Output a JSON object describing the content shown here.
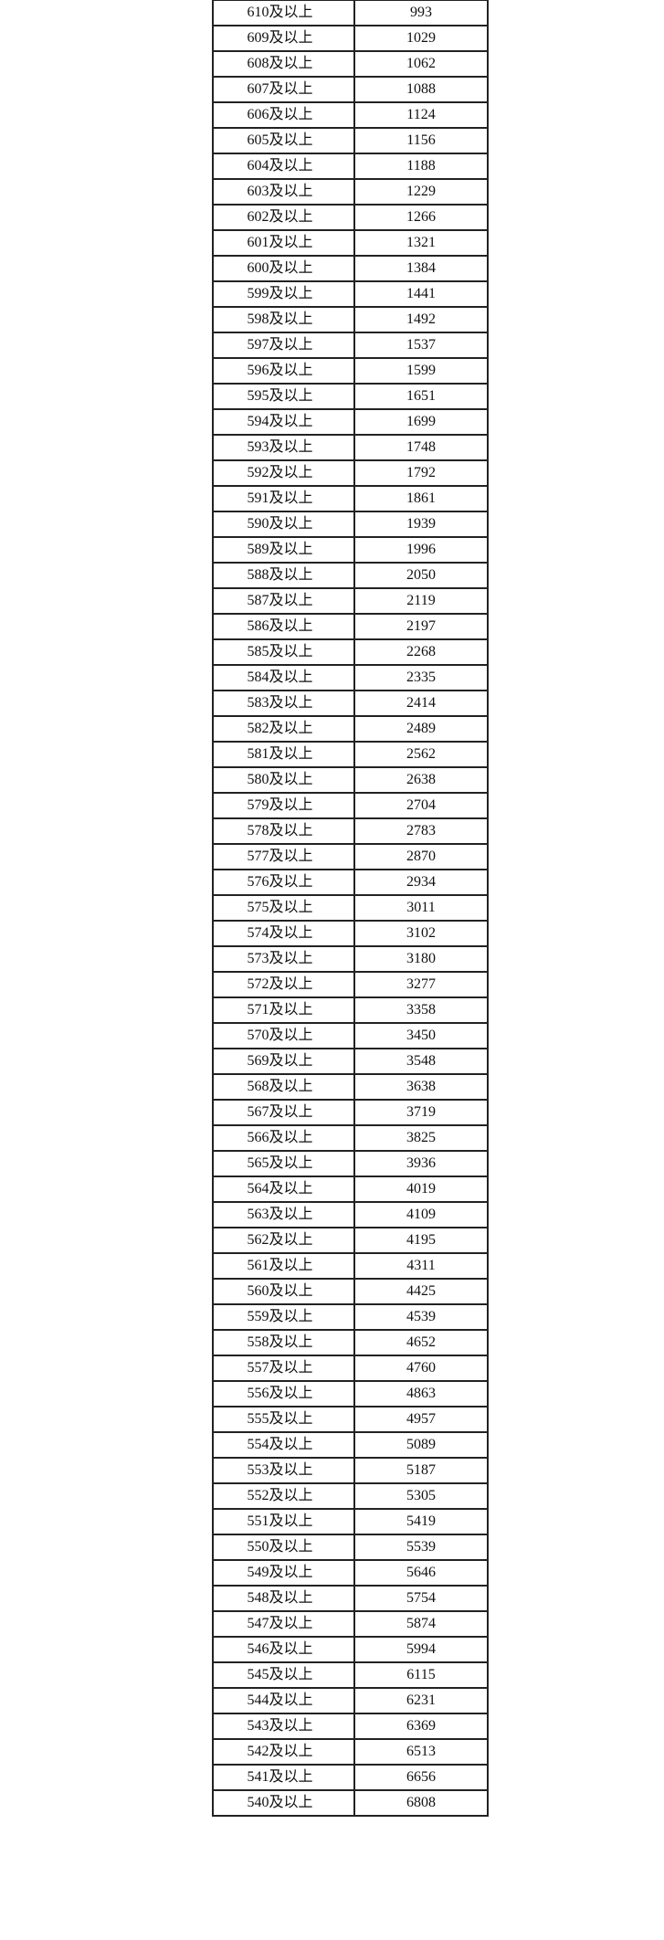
{
  "table": {
    "rows": [
      [
        "610及以上",
        "993"
      ],
      [
        "609及以上",
        "1029"
      ],
      [
        "608及以上",
        "1062"
      ],
      [
        "607及以上",
        "1088"
      ],
      [
        "606及以上",
        "1124"
      ],
      [
        "605及以上",
        "1156"
      ],
      [
        "604及以上",
        "1188"
      ],
      [
        "603及以上",
        "1229"
      ],
      [
        "602及以上",
        "1266"
      ],
      [
        "601及以上",
        "1321"
      ],
      [
        "600及以上",
        "1384"
      ],
      [
        "599及以上",
        "1441"
      ],
      [
        "598及以上",
        "1492"
      ],
      [
        "597及以上",
        "1537"
      ],
      [
        "596及以上",
        "1599"
      ],
      [
        "595及以上",
        "1651"
      ],
      [
        "594及以上",
        "1699"
      ],
      [
        "593及以上",
        "1748"
      ],
      [
        "592及以上",
        "1792"
      ],
      [
        "591及以上",
        "1861"
      ],
      [
        "590及以上",
        "1939"
      ],
      [
        "589及以上",
        "1996"
      ],
      [
        "588及以上",
        "2050"
      ],
      [
        "587及以上",
        "2119"
      ],
      [
        "586及以上",
        "2197"
      ],
      [
        "585及以上",
        "2268"
      ],
      [
        "584及以上",
        "2335"
      ],
      [
        "583及以上",
        "2414"
      ],
      [
        "582及以上",
        "2489"
      ],
      [
        "581及以上",
        "2562"
      ],
      [
        "580及以上",
        "2638"
      ],
      [
        "579及以上",
        "2704"
      ],
      [
        "578及以上",
        "2783"
      ],
      [
        "577及以上",
        "2870"
      ],
      [
        "576及以上",
        "2934"
      ],
      [
        "575及以上",
        "3011"
      ],
      [
        "574及以上",
        "3102"
      ],
      [
        "573及以上",
        "3180"
      ],
      [
        "572及以上",
        "3277"
      ],
      [
        "571及以上",
        "3358"
      ],
      [
        "570及以上",
        "3450"
      ],
      [
        "569及以上",
        "3548"
      ],
      [
        "568及以上",
        "3638"
      ],
      [
        "567及以上",
        "3719"
      ],
      [
        "566及以上",
        "3825"
      ],
      [
        "565及以上",
        "3936"
      ],
      [
        "564及以上",
        "4019"
      ],
      [
        "563及以上",
        "4109"
      ],
      [
        "562及以上",
        "4195"
      ],
      [
        "561及以上",
        "4311"
      ],
      [
        "560及以上",
        "4425"
      ],
      [
        "559及以上",
        "4539"
      ],
      [
        "558及以上",
        "4652"
      ],
      [
        "557及以上",
        "4760"
      ],
      [
        "556及以上",
        "4863"
      ],
      [
        "555及以上",
        "4957"
      ],
      [
        "554及以上",
        "5089"
      ],
      [
        "553及以上",
        "5187"
      ],
      [
        "552及以上",
        "5305"
      ],
      [
        "551及以上",
        "5419"
      ],
      [
        "550及以上",
        "5539"
      ],
      [
        "549及以上",
        "5646"
      ],
      [
        "548及以上",
        "5754"
      ],
      [
        "547及以上",
        "5874"
      ],
      [
        "546及以上",
        "5994"
      ],
      [
        "545及以上",
        "6115"
      ],
      [
        "544及以上",
        "6231"
      ],
      [
        "543及以上",
        "6369"
      ],
      [
        "542及以上",
        "6513"
      ],
      [
        "541及以上",
        "6656"
      ],
      [
        "540及以上",
        "6808"
      ]
    ]
  }
}
